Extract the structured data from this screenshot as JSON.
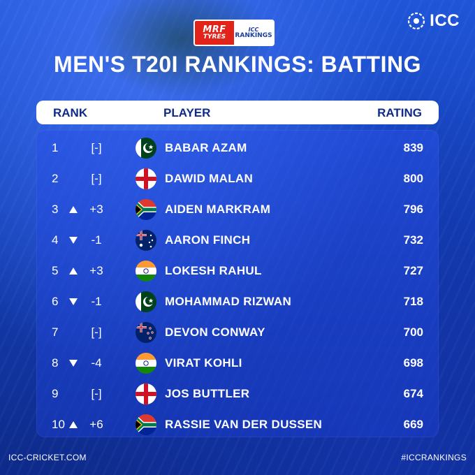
{
  "sponsor": {
    "brand": "MRF",
    "brand_sub": "TYRES",
    "icc_small": "ICC",
    "rankings": "RANKINGS"
  },
  "logo": {
    "text": "ICC"
  },
  "title": "MEN'S T20I RANKINGS: BATTING",
  "table": {
    "headers": {
      "rank": "RANK",
      "player": "PLAYER",
      "rating": "RATING"
    },
    "rows": [
      {
        "rank": "1",
        "arrow": "",
        "change": "[-]",
        "flag": "pakistan-flag",
        "player": "BABAR AZAM",
        "rating": "839"
      },
      {
        "rank": "2",
        "arrow": "",
        "change": "[-]",
        "flag": "england-flag",
        "player": "DAWID MALAN",
        "rating": "800"
      },
      {
        "rank": "3",
        "arrow": "up",
        "change": "+3",
        "flag": "south-africa-flag",
        "player": "AIDEN MARKRAM",
        "rating": "796"
      },
      {
        "rank": "4",
        "arrow": "down",
        "change": "-1",
        "flag": "australia-flag",
        "player": "AARON FINCH",
        "rating": "732"
      },
      {
        "rank": "5",
        "arrow": "up",
        "change": "+3",
        "flag": "india-flag",
        "player": "LOKESH RAHUL",
        "rating": "727"
      },
      {
        "rank": "6",
        "arrow": "down",
        "change": "-1",
        "flag": "pakistan-flag",
        "player": "MOHAMMAD RIZWAN",
        "rating": "718"
      },
      {
        "rank": "7",
        "arrow": "",
        "change": "[-]",
        "flag": "new-zealand-flag",
        "player": "DEVON CONWAY",
        "rating": "700"
      },
      {
        "rank": "8",
        "arrow": "down",
        "change": "-4",
        "flag": "india-flag",
        "player": "VIRAT KOHLI",
        "rating": "698"
      },
      {
        "rank": "9",
        "arrow": "",
        "change": "[-]",
        "flag": "england-flag",
        "player": "JOS BUTTLER",
        "rating": "674"
      },
      {
        "rank": "10",
        "arrow": "up",
        "change": "+6",
        "flag": "south-africa-flag",
        "player": "RASSIE VAN DER DUSSEN",
        "rating": "669"
      }
    ]
  },
  "footer": {
    "left": "ICC-CRICKET.COM",
    "right": "#ICCRANKINGS"
  },
  "colors": {
    "background": "#1a4bd0",
    "header_text": "#0e2a8a",
    "mrf_red": "#e2231a"
  }
}
